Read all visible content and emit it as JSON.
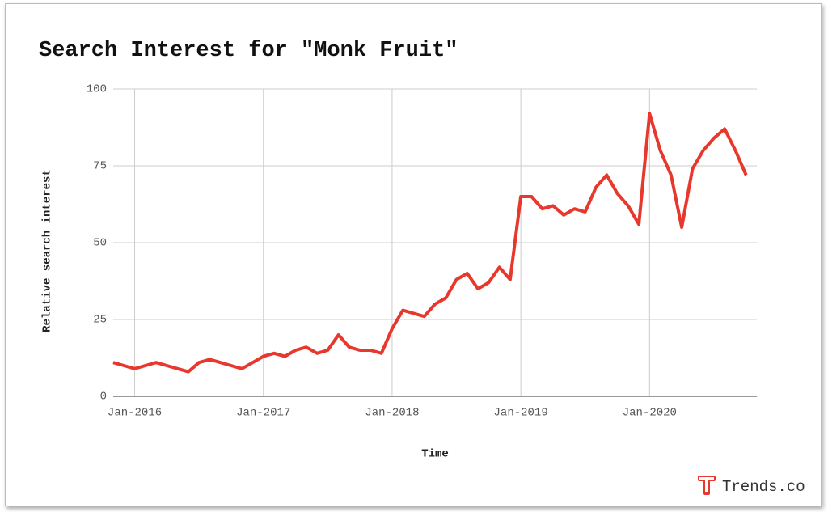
{
  "chart_data": {
    "type": "line",
    "title": "Search Interest for \"Monk Fruit\"",
    "xlabel": "Time",
    "ylabel": "Relative search interest",
    "x": [
      "2015-11",
      "2015-12",
      "2016-01",
      "2016-02",
      "2016-03",
      "2016-04",
      "2016-05",
      "2016-06",
      "2016-07",
      "2016-08",
      "2016-09",
      "2016-10",
      "2016-11",
      "2016-12",
      "2017-01",
      "2017-02",
      "2017-03",
      "2017-04",
      "2017-05",
      "2017-06",
      "2017-07",
      "2017-08",
      "2017-09",
      "2017-10",
      "2017-11",
      "2017-12",
      "2018-01",
      "2018-02",
      "2018-03",
      "2018-04",
      "2018-05",
      "2018-06",
      "2018-07",
      "2018-08",
      "2018-09",
      "2018-10",
      "2018-11",
      "2018-12",
      "2019-01",
      "2019-02",
      "2019-03",
      "2019-04",
      "2019-05",
      "2019-06",
      "2019-07",
      "2019-08",
      "2019-09",
      "2019-10",
      "2019-11",
      "2019-12",
      "2020-01",
      "2020-02",
      "2020-03",
      "2020-04",
      "2020-05",
      "2020-06",
      "2020-07",
      "2020-08",
      "2020-09",
      "2020-10"
    ],
    "values": [
      11,
      10,
      9,
      10,
      11,
      10,
      9,
      8,
      11,
      12,
      11,
      10,
      9,
      11,
      13,
      14,
      13,
      15,
      16,
      14,
      15,
      20,
      16,
      15,
      15,
      14,
      22,
      28,
      27,
      26,
      30,
      32,
      38,
      40,
      35,
      37,
      42,
      38,
      65,
      65,
      61,
      62,
      59,
      61,
      60,
      68,
      72,
      66,
      62,
      56,
      92,
      80,
      72,
      55,
      74,
      80,
      84,
      87,
      80,
      72
    ],
    "color": "#e8372c",
    "xlim": [
      "2015-11",
      "2020-11"
    ],
    "xticks": [
      {
        "value": "2016-01",
        "label": "Jan-2016"
      },
      {
        "value": "2017-01",
        "label": "Jan-2017"
      },
      {
        "value": "2018-01",
        "label": "Jan-2018"
      },
      {
        "value": "2019-01",
        "label": "Jan-2019"
      },
      {
        "value": "2020-01",
        "label": "Jan-2020"
      }
    ],
    "ylim": [
      0,
      100
    ],
    "yticks": [
      0,
      25,
      50,
      75,
      100
    ],
    "grid": true
  },
  "footer": {
    "brand": "Trends.co"
  }
}
